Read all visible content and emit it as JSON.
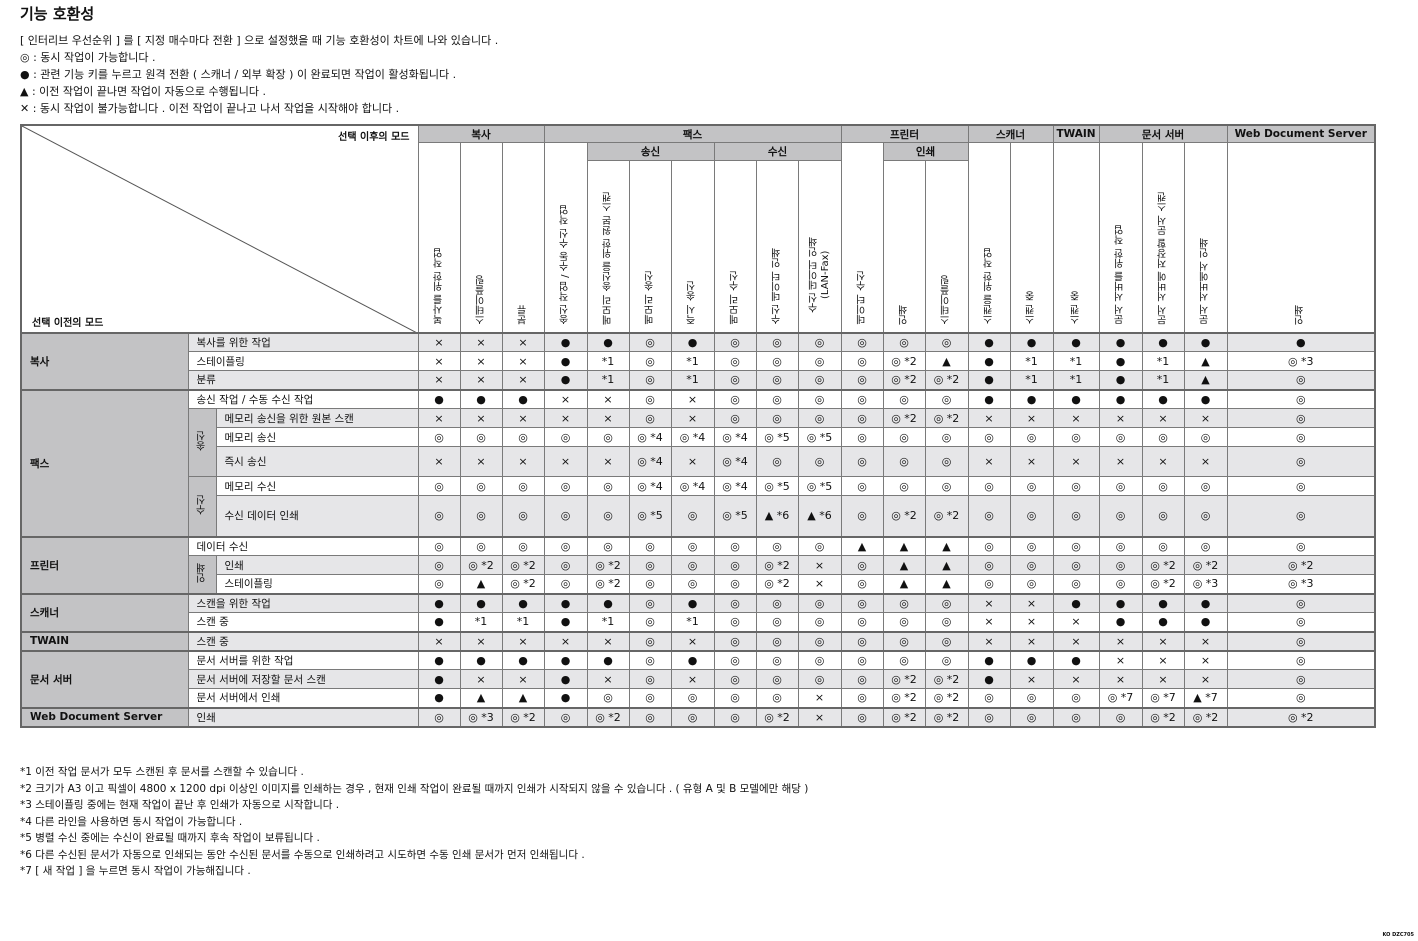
{
  "title": "기능 호환성",
  "intro": [
    "[ 인터리브 우선순위 ] 를 [ 지정 매수마다 전환 ] 으로 설정했을 때 기능 호환성이 차트에 나와 있습니다 .",
    "◎ : 동시 작업이 가능합니다 .",
    "● : 관련 기능 키를 누르고 원격 전환 ( 스캐너 / 외부 확장 ) 이 완료되면 작업이 활성화됩니다 .",
    "▲ : 이전 작업이 끝나면 작업이 자동으로 수행됩니다 .",
    "✕ : 동시 작업이 불가능합니다 . 이전 작업이 끝나고 나서 작업을 시작해야 합니다 ."
  ],
  "table": {
    "corner_after": "선택 이후의 모드",
    "corner_before": "선택 이전의 모드",
    "header": {
      "copy": "복사",
      "fax": "팩스",
      "printer": "프린터",
      "scanner": "스캐너",
      "twain": "TWAIN",
      "docserver": "문서 서버",
      "wds": "Web Document Server",
      "fax_send": "송신",
      "fax_recv": "수신",
      "printer_print": "인쇄",
      "cols": [
        "복사를 위한 작업",
        "스테이플링",
        "분류",
        "송신 작업 / 수동 수신 작업",
        "메모리 송신을 위한 원본 스캔",
        "메모리 송신",
        "즉시 송신",
        "메모리 수신",
        "수신 데이터 인쇄",
        "수신 데이터 인쇄 (LAN-Fax)",
        "데이터 수신",
        "인쇄",
        "스테이플링",
        "스캔을 위한 작업",
        "스캔 중",
        "스캔 중",
        "문서 서버를 위한 작업",
        "문서 서버에 저장할 문서 스캔",
        "문서 서버에서 인쇄",
        "인쇄"
      ]
    },
    "groups": [
      {
        "label": "복사",
        "rows": [
          {
            "label": "복사를 위한 작업",
            "values": [
              "×",
              "×",
              "×",
              "●",
              "●",
              "◎",
              "●",
              "◎",
              "◎",
              "◎",
              "◎",
              "◎",
              "◎",
              "●",
              "●",
              "●",
              "●",
              "●",
              "●",
              "●"
            ]
          },
          {
            "label": "스테이플링",
            "values": [
              "×",
              "×",
              "×",
              "●",
              "*1",
              "◎",
              "*1",
              "◎",
              "◎",
              "◎",
              "◎",
              "◎ *2",
              "▲",
              "●",
              "*1",
              "*1",
              "●",
              "*1",
              "▲",
              "◎ *3"
            ]
          },
          {
            "label": "분류",
            "values": [
              "×",
              "×",
              "×",
              "●",
              "*1",
              "◎",
              "*1",
              "◎",
              "◎",
              "◎",
              "◎",
              "◎ *2",
              "◎ *2",
              "●",
              "*1",
              "*1",
              "●",
              "*1",
              "▲",
              "◎"
            ]
          }
        ]
      },
      {
        "label": "팩스",
        "rows": [
          {
            "label": "송신 작업 / 수동 수신 작업",
            "values": [
              "●",
              "●",
              "●",
              "×",
              "×",
              "◎",
              "×",
              "◎",
              "◎",
              "◎",
              "◎",
              "◎",
              "◎",
              "●",
              "●",
              "●",
              "●",
              "●",
              "●",
              "◎"
            ]
          },
          {
            "label": "메모리 송신을 위한 원본 스캔",
            "sub": "송신",
            "values": [
              "×",
              "×",
              "×",
              "×",
              "×",
              "◎",
              "×",
              "◎",
              "◎",
              "◎",
              "◎",
              "◎ *2",
              "◎ *2",
              "×",
              "×",
              "×",
              "×",
              "×",
              "×",
              "◎"
            ]
          },
          {
            "label": "메모리 송신",
            "sub": "송신",
            "values": [
              "◎",
              "◎",
              "◎",
              "◎",
              "◎",
              "◎ *4",
              "◎ *4",
              "◎ *4",
              "◎ *5",
              "◎ *5",
              "◎",
              "◎",
              "◎",
              "◎",
              "◎",
              "◎",
              "◎",
              "◎",
              "◎",
              "◎"
            ]
          },
          {
            "label": "즉시 송신",
            "sub": "송신",
            "values": [
              "×",
              "×",
              "×",
              "×",
              "×",
              "◎ *4",
              "×",
              "◎ *4",
              "◎",
              "◎",
              "◎",
              "◎",
              "◎",
              "×",
              "×",
              "×",
              "×",
              "×",
              "×",
              "◎"
            ]
          },
          {
            "label": "메모리 수신",
            "sub": "수신",
            "values": [
              "◎",
              "◎",
              "◎",
              "◎",
              "◎",
              "◎ *4",
              "◎ *4",
              "◎ *4",
              "◎ *5",
              "◎ *5",
              "◎",
              "◎",
              "◎",
              "◎",
              "◎",
              "◎",
              "◎",
              "◎",
              "◎",
              "◎"
            ]
          },
          {
            "label": "수신 데이터 인쇄",
            "sub": "수신",
            "values": [
              "◎",
              "◎",
              "◎",
              "◎",
              "◎",
              "◎ *5",
              "◎",
              "◎ *5",
              "▲ *6",
              "▲ *6",
              "◎",
              "◎ *2",
              "◎ *2",
              "◎",
              "◎",
              "◎",
              "◎",
              "◎",
              "◎",
              "◎"
            ]
          }
        ]
      },
      {
        "label": "프린터",
        "rows": [
          {
            "label": "데이터 수신",
            "values": [
              "◎",
              "◎",
              "◎",
              "◎",
              "◎",
              "◎",
              "◎",
              "◎",
              "◎",
              "◎",
              "▲",
              "▲",
              "▲",
              "◎",
              "◎",
              "◎",
              "◎",
              "◎",
              "◎",
              "◎"
            ]
          },
          {
            "label": "인쇄",
            "sub": "인쇄",
            "values": [
              "◎",
              "◎ *2",
              "◎ *2",
              "◎",
              "◎ *2",
              "◎",
              "◎",
              "◎",
              "◎ *2",
              "×",
              "◎",
              "▲",
              "▲",
              "◎",
              "◎",
              "◎",
              "◎",
              "◎ *2",
              "◎ *2",
              "◎ *2"
            ]
          },
          {
            "label": "스테이플링",
            "sub": "인쇄",
            "values": [
              "◎",
              "▲",
              "◎ *2",
              "◎",
              "◎ *2",
              "◎",
              "◎",
              "◎",
              "◎ *2",
              "×",
              "◎",
              "▲",
              "▲",
              "◎",
              "◎",
              "◎",
              "◎",
              "◎ *2",
              "◎ *3",
              "◎ *3"
            ]
          }
        ]
      },
      {
        "label": "스캐너",
        "rows": [
          {
            "label": "스캔을 위한 작업",
            "values": [
              "●",
              "●",
              "●",
              "●",
              "●",
              "◎",
              "●",
              "◎",
              "◎",
              "◎",
              "◎",
              "◎",
              "◎",
              "×",
              "×",
              "●",
              "●",
              "●",
              "●",
              "◎"
            ]
          },
          {
            "label": "스캔 중",
            "values": [
              "●",
              "*1",
              "*1",
              "●",
              "*1",
              "◎",
              "*1",
              "◎",
              "◎",
              "◎",
              "◎",
              "◎",
              "◎",
              "×",
              "×",
              "×",
              "●",
              "●",
              "●",
              "◎"
            ]
          }
        ]
      },
      {
        "label": "TWAIN",
        "rows": [
          {
            "label": "스캔 중",
            "values": [
              "×",
              "×",
              "×",
              "×",
              "×",
              "◎",
              "×",
              "◎",
              "◎",
              "◎",
              "◎",
              "◎",
              "◎",
              "×",
              "×",
              "×",
              "×",
              "×",
              "×",
              "◎"
            ]
          }
        ]
      },
      {
        "label": "문서 서버",
        "rows": [
          {
            "label": "문서 서버를 위한 작업",
            "values": [
              "●",
              "●",
              "●",
              "●",
              "●",
              "◎",
              "●",
              "◎",
              "◎",
              "◎",
              "◎",
              "◎",
              "◎",
              "●",
              "●",
              "●",
              "×",
              "×",
              "×",
              "◎"
            ]
          },
          {
            "label": "문서 서버에 저장할 문서 스캔",
            "values": [
              "●",
              "×",
              "×",
              "●",
              "×",
              "◎",
              "×",
              "◎",
              "◎",
              "◎",
              "◎",
              "◎ *2",
              "◎ *2",
              "●",
              "×",
              "×",
              "×",
              "×",
              "×",
              "◎"
            ]
          },
          {
            "label": "문서 서버에서 인쇄",
            "values": [
              "●",
              "▲",
              "▲",
              "●",
              "◎",
              "◎",
              "◎",
              "◎",
              "◎",
              "×",
              "◎",
              "◎ *2",
              "◎ *2",
              "◎",
              "◎",
              "◎",
              "◎ *7",
              "◎ *7",
              "▲ *7",
              "◎"
            ]
          }
        ]
      },
      {
        "label": "Web Document Server",
        "rows": [
          {
            "label": "인쇄",
            "values": [
              "◎",
              "◎ *3",
              "◎ *2",
              "◎",
              "◎ *2",
              "◎",
              "◎",
              "◎",
              "◎ *2",
              "×",
              "◎",
              "◎ *2",
              "◎ *2",
              "◎",
              "◎",
              "◎",
              "◎",
              "◎ *2",
              "◎ *2",
              "◎ *2"
            ]
          }
        ]
      }
    ]
  },
  "notes": [
    "*1 이전 작업 문서가 모두 스캔된 후 문서를 스캔할 수 있습니다 .",
    "*2 크기가 A3 이고 픽셀이 4800 x 1200 dpi 이상인 이미지를 인쇄하는 경우 , 현재 인쇄 작업이 완료될 때까지 인쇄가 시작되지 않을 수 있습니다 . ( 유형 A 및 B 모델에만 해당 )",
    "*3 스테이플링 중에는 현재 작업이 끝난 후 인쇄가 자동으로 시작합니다 .",
    "*4 다른 라인을 사용하면 동시 작업이 가능합니다 .",
    "*5 병렬 수신 중에는 수신이 완료될 때까지 후속 작업이 보류됩니다 .",
    "*6 다른 수신된 문서가 자동으로 인쇄되는 동안 수신된 문서를 수동으로 인쇄하려고 시도하면 수동 인쇄 문서가 먼저 인쇄됩니다 .",
    "*7 [ 새 작업 ] 을 누르면 동시 작업이 가능해집니다 ."
  ],
  "code": "KO DZC705"
}
